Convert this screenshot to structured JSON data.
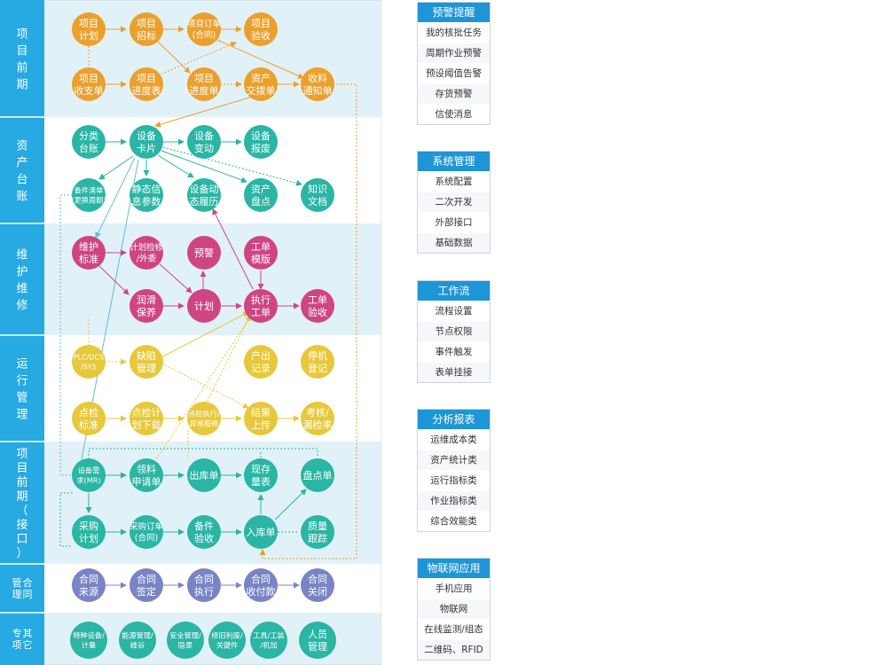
{
  "colors": {
    "sidebar": "#27a9e1",
    "band_light": "#e1f1f8",
    "band_white": "#ffffff",
    "orange": "#eba02e",
    "teal": "#2ab5a4",
    "magenta": "#cf4584",
    "yellow": "#e7c83a",
    "blue_purple": "#7884c4",
    "panel_head": "#1e95d6"
  },
  "sections": [
    {
      "id": "s1",
      "label": "项目前期"
    },
    {
      "id": "s2",
      "label": "资产台账"
    },
    {
      "id": "s3",
      "label": "维护维修"
    },
    {
      "id": "s4",
      "label": "运行管理"
    },
    {
      "id": "s5",
      "label": "项目前期（接口）"
    },
    {
      "id": "s6",
      "label": "合同管理"
    },
    {
      "id": "s7",
      "label": "其它专项"
    }
  ],
  "nodes": [
    {
      "id": "n1",
      "lines": [
        "项目",
        "计划"
      ],
      "color": "orange"
    },
    {
      "id": "n2",
      "lines": [
        "项目",
        "招标"
      ],
      "color": "orange"
    },
    {
      "id": "n3",
      "lines": [
        "项目订单",
        "(合同)"
      ],
      "color": "orange"
    },
    {
      "id": "n4",
      "lines": [
        "项目",
        "验收"
      ],
      "color": "orange"
    },
    {
      "id": "n5",
      "lines": [
        "项目",
        "收支单"
      ],
      "color": "orange"
    },
    {
      "id": "n6",
      "lines": [
        "项目",
        "进度表"
      ],
      "color": "orange"
    },
    {
      "id": "n7",
      "lines": [
        "项目",
        "进度单"
      ],
      "color": "orange"
    },
    {
      "id": "n8",
      "lines": [
        "资产",
        "交拨单"
      ],
      "color": "orange"
    },
    {
      "id": "n9",
      "lines": [
        "收料",
        "通知单"
      ],
      "color": "orange"
    },
    {
      "id": "n10",
      "lines": [
        "分类",
        "台账"
      ],
      "color": "teal"
    },
    {
      "id": "n11",
      "lines": [
        "设备",
        "卡片"
      ],
      "color": "teal"
    },
    {
      "id": "n12",
      "lines": [
        "设备",
        "变动"
      ],
      "color": "teal"
    },
    {
      "id": "n13",
      "lines": [
        "设备",
        "报废"
      ],
      "color": "teal"
    },
    {
      "id": "n14",
      "lines": [
        "备件清单",
        "(更换周期)"
      ],
      "color": "teal"
    },
    {
      "id": "n15",
      "lines": [
        "静态信",
        "息参数"
      ],
      "color": "teal"
    },
    {
      "id": "n16",
      "lines": [
        "设备动",
        "态履历"
      ],
      "color": "teal"
    },
    {
      "id": "n17",
      "lines": [
        "资产",
        "盘点"
      ],
      "color": "teal"
    },
    {
      "id": "n18",
      "lines": [
        "知识",
        "文档"
      ],
      "color": "teal"
    },
    {
      "id": "n19",
      "lines": [
        "维护",
        "标准"
      ],
      "color": "magenta"
    },
    {
      "id": "n20",
      "lines": [
        "计划检修",
        "/外委"
      ],
      "color": "magenta"
    },
    {
      "id": "n21",
      "lines": [
        "预警"
      ],
      "color": "magenta"
    },
    {
      "id": "n22",
      "lines": [
        "工单",
        "模版"
      ],
      "color": "magenta"
    },
    {
      "id": "n23",
      "lines": [
        "润滑",
        "保养"
      ],
      "color": "magenta"
    },
    {
      "id": "n24",
      "lines": [
        "计划"
      ],
      "color": "magenta"
    },
    {
      "id": "n25",
      "lines": [
        "执行",
        "工单"
      ],
      "color": "magenta"
    },
    {
      "id": "n26",
      "lines": [
        "工单",
        "验收"
      ],
      "color": "magenta"
    },
    {
      "id": "n27",
      "lines": [
        "PLC/DCS",
        "/SYS"
      ],
      "color": "yellow"
    },
    {
      "id": "n28",
      "lines": [
        "缺陷",
        "管理"
      ],
      "color": "yellow"
    },
    {
      "id": "n29",
      "lines": [
        "产出",
        "记录"
      ],
      "color": "yellow"
    },
    {
      "id": "n30",
      "lines": [
        "停机",
        "登记"
      ],
      "color": "yellow"
    },
    {
      "id": "n31",
      "lines": [
        "点检",
        "标准"
      ],
      "color": "yellow"
    },
    {
      "id": "n32",
      "lines": [
        "点检计",
        "划下载"
      ],
      "color": "yellow"
    },
    {
      "id": "n33",
      "lines": [
        "点检执行/",
        "异常报修"
      ],
      "color": "yellow"
    },
    {
      "id": "n34",
      "lines": [
        "结果",
        "上传"
      ],
      "color": "yellow"
    },
    {
      "id": "n35",
      "lines": [
        "考核/",
        "漏检率"
      ],
      "color": "yellow"
    },
    {
      "id": "n36",
      "lines": [
        "设备需",
        "求(MR)"
      ],
      "color": "teal"
    },
    {
      "id": "n37",
      "lines": [
        "领料",
        "申请单"
      ],
      "color": "teal"
    },
    {
      "id": "n38",
      "lines": [
        "出库单"
      ],
      "color": "teal"
    },
    {
      "id": "n39",
      "lines": [
        "现存",
        "量表"
      ],
      "color": "teal"
    },
    {
      "id": "n40",
      "lines": [
        "盘点单"
      ],
      "color": "teal"
    },
    {
      "id": "n41",
      "lines": [
        "采购",
        "计划"
      ],
      "color": "teal"
    },
    {
      "id": "n42",
      "lines": [
        "采购订单",
        "(合同)"
      ],
      "color": "teal"
    },
    {
      "id": "n43",
      "lines": [
        "备件",
        "验收"
      ],
      "color": "teal"
    },
    {
      "id": "n44",
      "lines": [
        "入库单"
      ],
      "color": "teal"
    },
    {
      "id": "n45",
      "lines": [
        "质量",
        "跟踪"
      ],
      "color": "teal"
    },
    {
      "id": "n46",
      "lines": [
        "合同",
        "来源"
      ],
      "color": "blue_purple"
    },
    {
      "id": "n47",
      "lines": [
        "合同",
        "签定"
      ],
      "color": "blue_purple"
    },
    {
      "id": "n48",
      "lines": [
        "合同",
        "执行"
      ],
      "color": "blue_purple"
    },
    {
      "id": "n49",
      "lines": [
        "合同",
        "收付款"
      ],
      "color": "blue_purple"
    },
    {
      "id": "n50",
      "lines": [
        "合同",
        "关闭"
      ],
      "color": "blue_purple"
    },
    {
      "id": "n51",
      "lines": [
        "特种设备/",
        "计量"
      ],
      "color": "teal"
    },
    {
      "id": "n52",
      "lines": [
        "能源管理/",
        "峰谷"
      ],
      "color": "teal"
    },
    {
      "id": "n53",
      "lines": [
        "安全管理/",
        "隐患"
      ],
      "color": "teal"
    },
    {
      "id": "n54",
      "lines": [
        "修旧利废/",
        "关键件"
      ],
      "color": "teal"
    },
    {
      "id": "n55",
      "lines": [
        "工具/工装",
        "/机加"
      ],
      "color": "teal"
    },
    {
      "id": "n56",
      "lines": [
        "人员",
        "管理"
      ],
      "color": "teal"
    }
  ],
  "panels": [
    {
      "title": "预警提醒",
      "items": [
        "我的核批任务",
        "周期作业预警",
        "预设阈值告警",
        "存货预警",
        "信使消息"
      ]
    },
    {
      "title": "系统管理",
      "items": [
        "系统配置",
        "二次开发",
        "外部接口",
        "基础数据"
      ]
    },
    {
      "title": "工作流",
      "items": [
        "流程设置",
        "节点权限",
        "事件触发",
        "表单挂接"
      ]
    },
    {
      "title": "分析报表",
      "items": [
        "运维成本类",
        "资产统计类",
        "运行指标类",
        "作业指标类",
        "综合效能类"
      ]
    },
    {
      "title": "物联网应用",
      "items": [
        "手机应用",
        "物联网",
        "在线监测/组态",
        "二维码、RFID"
      ]
    }
  ]
}
